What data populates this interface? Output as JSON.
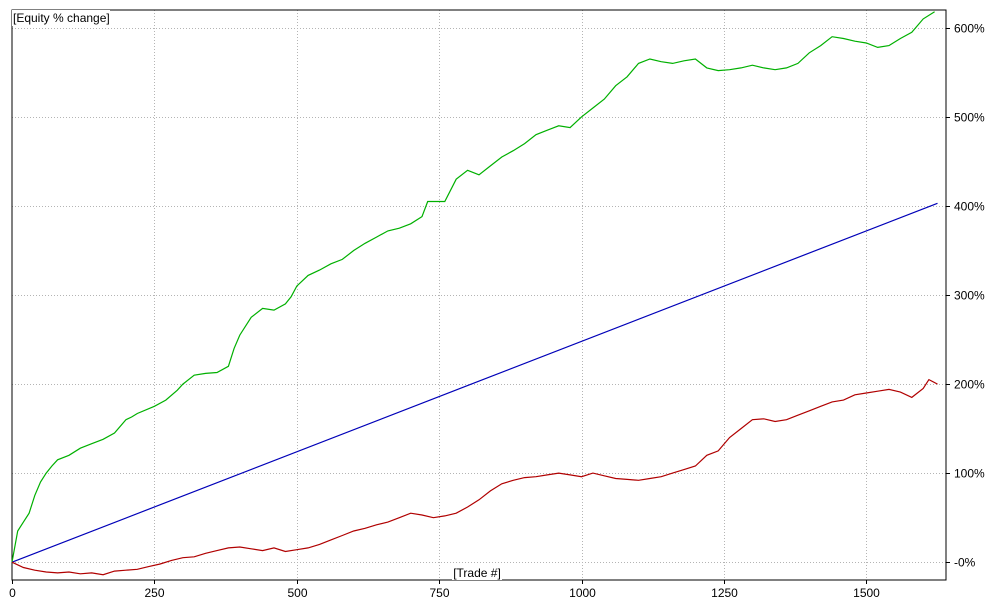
{
  "chart_data": {
    "type": "line",
    "title": "[Equity % change]",
    "xlabel": "[Trade #]",
    "ylabel": "",
    "xlim": [
      0,
      1640
    ],
    "ylim": [
      -20,
      620
    ],
    "x_ticks": [
      0,
      250,
      500,
      750,
      1000,
      1250,
      1500
    ],
    "x_tick_labels": [
      "0",
      "250",
      "500",
      "750",
      "1000",
      "1250",
      "1500"
    ],
    "y_ticks": [
      0,
      100,
      200,
      300,
      400,
      500,
      600
    ],
    "y_tick_labels": [
      "-0%",
      "100%",
      "200%",
      "300%",
      "400%",
      "500%",
      "600%"
    ],
    "grid": true,
    "legend": "none",
    "series": [
      {
        "color": "#00b000",
        "x": [
          0,
          10,
          20,
          30,
          40,
          50,
          60,
          70,
          80,
          100,
          120,
          140,
          160,
          180,
          200,
          210,
          220,
          250,
          270,
          290,
          300,
          320,
          340,
          360,
          380,
          390,
          400,
          410,
          420,
          440,
          460,
          480,
          490,
          500,
          520,
          540,
          560,
          580,
          600,
          620,
          640,
          660,
          680,
          700,
          720,
          730,
          740,
          760,
          780,
          800,
          820,
          840,
          860,
          880,
          900,
          920,
          940,
          960,
          980,
          1000,
          1020,
          1040,
          1060,
          1080,
          1100,
          1120,
          1140,
          1160,
          1180,
          1200,
          1220,
          1240,
          1260,
          1280,
          1300,
          1320,
          1340,
          1360,
          1380,
          1400,
          1420,
          1440,
          1460,
          1480,
          1500,
          1520,
          1540,
          1560,
          1580,
          1600,
          1620
        ],
        "y": [
          0,
          35,
          45,
          55,
          75,
          90,
          100,
          108,
          115,
          120,
          128,
          133,
          138,
          145,
          160,
          163,
          167,
          175,
          182,
          193,
          200,
          210,
          212,
          213,
          220,
          240,
          255,
          265,
          275,
          285,
          283,
          290,
          298,
          310,
          322,
          328,
          335,
          340,
          350,
          358,
          365,
          372,
          375,
          380,
          388,
          405,
          405,
          405,
          430,
          440,
          435,
          445,
          455,
          462,
          470,
          480,
          485,
          490,
          488,
          500,
          510,
          520,
          535,
          545,
          560,
          565,
          562,
          560,
          563,
          565,
          555,
          552,
          553,
          555,
          558,
          555,
          553,
          555,
          560,
          572,
          580,
          590,
          588,
          585,
          583,
          578,
          580,
          588,
          595,
          610,
          618
        ]
      },
      {
        "color": "#0000b8",
        "x": [
          0,
          1625
        ],
        "y": [
          0,
          403
        ]
      },
      {
        "color": "#b00000",
        "x": [
          0,
          20,
          40,
          60,
          80,
          100,
          120,
          140,
          160,
          180,
          200,
          220,
          240,
          260,
          280,
          300,
          320,
          340,
          360,
          380,
          400,
          420,
          440,
          460,
          480,
          500,
          520,
          540,
          560,
          580,
          600,
          620,
          640,
          660,
          680,
          700,
          720,
          740,
          760,
          780,
          800,
          820,
          840,
          860,
          880,
          900,
          920,
          940,
          960,
          980,
          1000,
          1020,
          1040,
          1060,
          1080,
          1100,
          1120,
          1140,
          1160,
          1180,
          1200,
          1220,
          1240,
          1260,
          1280,
          1300,
          1320,
          1340,
          1360,
          1380,
          1400,
          1420,
          1440,
          1460,
          1480,
          1500,
          1520,
          1540,
          1560,
          1580,
          1600,
          1610,
          1625
        ],
        "y": [
          0,
          -6,
          -9,
          -11,
          -12,
          -11,
          -13,
          -12,
          -14,
          -10,
          -9,
          -8,
          -5,
          -2,
          2,
          5,
          6,
          10,
          13,
          16,
          17,
          15,
          13,
          16,
          12,
          14,
          16,
          20,
          25,
          30,
          35,
          38,
          42,
          45,
          50,
          55,
          53,
          50,
          52,
          55,
          62,
          70,
          80,
          88,
          92,
          95,
          96,
          98,
          100,
          98,
          96,
          100,
          97,
          94,
          93,
          92,
          94,
          96,
          100,
          104,
          108,
          120,
          125,
          140,
          150,
          160,
          161,
          158,
          160,
          165,
          170,
          175,
          180,
          182,
          188,
          190,
          192,
          194,
          191,
          185,
          195,
          205,
          200
        ]
      }
    ]
  }
}
